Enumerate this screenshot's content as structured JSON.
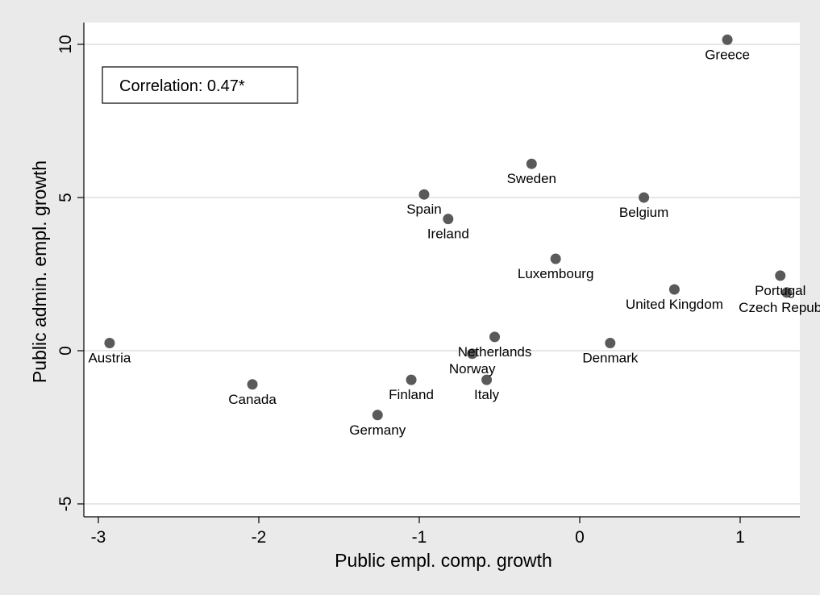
{
  "chart_data": {
    "type": "scatter",
    "title": "",
    "xlabel": "Public empl. comp. growth",
    "ylabel": "Public admin. empl. growth",
    "xlim": [
      -3.0,
      1.35
    ],
    "ylim": [
      -5.0,
      10.4
    ],
    "xticks": [
      -3,
      -2,
      -1,
      0,
      1
    ],
    "yticks": [
      -5,
      0,
      5,
      10
    ],
    "grid": "horizontal",
    "marker_color": "#5a5a5a",
    "plot_background": "#ffffff",
    "outer_background": "#eaeaea",
    "annotation": "Correlation: 0.47*",
    "points": [
      {
        "label": "Greece",
        "x": 0.92,
        "y": 10.15
      },
      {
        "label": "Sweden",
        "x": -0.3,
        "y": 6.1
      },
      {
        "label": "Spain",
        "x": -0.97,
        "y": 5.1
      },
      {
        "label": "Belgium",
        "x": 0.4,
        "y": 5.0
      },
      {
        "label": "Ireland",
        "x": -0.82,
        "y": 4.3
      },
      {
        "label": "Luxembourg",
        "x": -0.15,
        "y": 3.0
      },
      {
        "label": "Portugal",
        "x": 1.25,
        "y": 2.45
      },
      {
        "label": "United Kingdom",
        "x": 0.59,
        "y": 2.0
      },
      {
        "label": "Czech Republic",
        "x": 1.29,
        "y": 1.9
      },
      {
        "label": "Austria",
        "x": -2.93,
        "y": 0.25
      },
      {
        "label": "Netherlands",
        "x": -0.53,
        "y": 0.45
      },
      {
        "label": "Denmark",
        "x": 0.19,
        "y": 0.25
      },
      {
        "label": "Norway",
        "x": -0.67,
        "y": -0.1
      },
      {
        "label": "Italy",
        "x": -0.58,
        "y": -0.95
      },
      {
        "label": "Finland",
        "x": -1.05,
        "y": -0.95
      },
      {
        "label": "Canada",
        "x": -2.04,
        "y": -1.1
      },
      {
        "label": "Germany",
        "x": -1.26,
        "y": -2.1
      }
    ]
  }
}
